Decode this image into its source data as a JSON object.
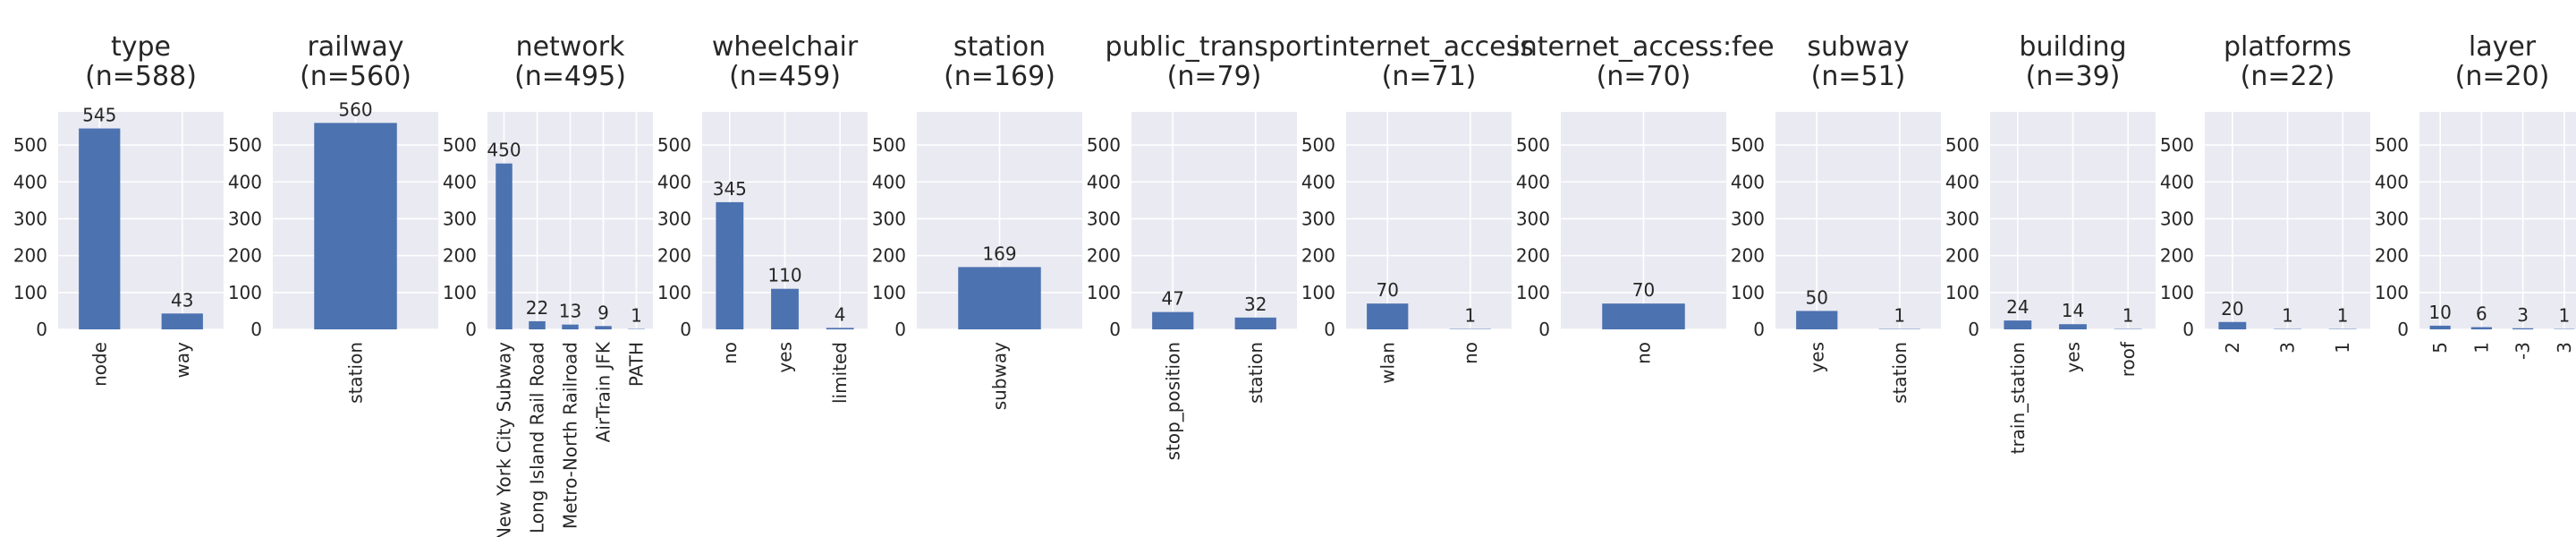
{
  "style": {
    "bar_color": "#4c72b0",
    "plot_background": "#eaeaf2",
    "grid_color": "#ffffff",
    "text_color": "#262626"
  },
  "chart_data": [
    {
      "type": "bar",
      "title": "type",
      "subtitle": "(n=588)",
      "categories": [
        "node",
        "way"
      ],
      "values": [
        545,
        43
      ],
      "ylim": [
        0,
        590
      ],
      "yticks": [
        0,
        100,
        200,
        300,
        400,
        500
      ],
      "grid": true
    },
    {
      "type": "bar",
      "title": "railway",
      "subtitle": "(n=560)",
      "categories": [
        "station"
      ],
      "values": [
        560
      ],
      "ylim": [
        0,
        590
      ],
      "yticks": [
        0,
        100,
        200,
        300,
        400,
        500
      ],
      "grid": true
    },
    {
      "type": "bar",
      "title": "network",
      "subtitle": "(n=495)",
      "categories": [
        "New York City Subway",
        "Long Island Rail Road",
        "Metro-North Railroad",
        "AirTrain JFK",
        "PATH"
      ],
      "values": [
        450,
        22,
        13,
        9,
        1
      ],
      "ylim": [
        0,
        590
      ],
      "yticks": [
        0,
        100,
        200,
        300,
        400,
        500
      ],
      "grid": true
    },
    {
      "type": "bar",
      "title": "wheelchair",
      "subtitle": "(n=459)",
      "categories": [
        "no",
        "yes",
        "limited"
      ],
      "values": [
        345,
        110,
        4
      ],
      "ylim": [
        0,
        590
      ],
      "yticks": [
        0,
        100,
        200,
        300,
        400,
        500
      ],
      "grid": true
    },
    {
      "type": "bar",
      "title": "station",
      "subtitle": "(n=169)",
      "categories": [
        "subway"
      ],
      "values": [
        169
      ],
      "ylim": [
        0,
        590
      ],
      "yticks": [
        0,
        100,
        200,
        300,
        400,
        500
      ],
      "grid": true
    },
    {
      "type": "bar",
      "title": "public_transport",
      "subtitle": "(n=79)",
      "categories": [
        "stop_position",
        "station"
      ],
      "values": [
        47,
        32
      ],
      "ylim": [
        0,
        590
      ],
      "yticks": [
        0,
        100,
        200,
        300,
        400,
        500
      ],
      "grid": true
    },
    {
      "type": "bar",
      "title": "internet_access",
      "subtitle": "(n=71)",
      "categories": [
        "wlan",
        "no"
      ],
      "values": [
        70,
        1
      ],
      "ylim": [
        0,
        590
      ],
      "yticks": [
        0,
        100,
        200,
        300,
        400,
        500
      ],
      "grid": true
    },
    {
      "type": "bar",
      "title": "internet_access:fee",
      "subtitle": "(n=70)",
      "categories": [
        "no"
      ],
      "values": [
        70
      ],
      "ylim": [
        0,
        590
      ],
      "yticks": [
        0,
        100,
        200,
        300,
        400,
        500
      ],
      "grid": true
    },
    {
      "type": "bar",
      "title": "subway",
      "subtitle": "(n=51)",
      "categories": [
        "yes",
        "station"
      ],
      "values": [
        50,
        1
      ],
      "ylim": [
        0,
        590
      ],
      "yticks": [
        0,
        100,
        200,
        300,
        400,
        500
      ],
      "grid": true
    },
    {
      "type": "bar",
      "title": "building",
      "subtitle": "(n=39)",
      "categories": [
        "train_station",
        "yes",
        "roof"
      ],
      "values": [
        24,
        14,
        1
      ],
      "ylim": [
        0,
        590
      ],
      "yticks": [
        0,
        100,
        200,
        300,
        400,
        500
      ],
      "grid": true
    },
    {
      "type": "bar",
      "title": "platforms",
      "subtitle": "(n=22)",
      "categories": [
        "2",
        "3",
        "1"
      ],
      "values": [
        20,
        1,
        1
      ],
      "ylim": [
        0,
        590
      ],
      "yticks": [
        0,
        100,
        200,
        300,
        400,
        500
      ],
      "grid": true
    },
    {
      "type": "bar",
      "title": "layer",
      "subtitle": "(n=20)",
      "categories": [
        "5",
        "1",
        "-3",
        "3"
      ],
      "values": [
        10,
        6,
        3,
        1
      ],
      "ylim": [
        0,
        590
      ],
      "yticks": [
        0,
        100,
        200,
        300,
        400,
        500
      ],
      "grid": true
    }
  ]
}
